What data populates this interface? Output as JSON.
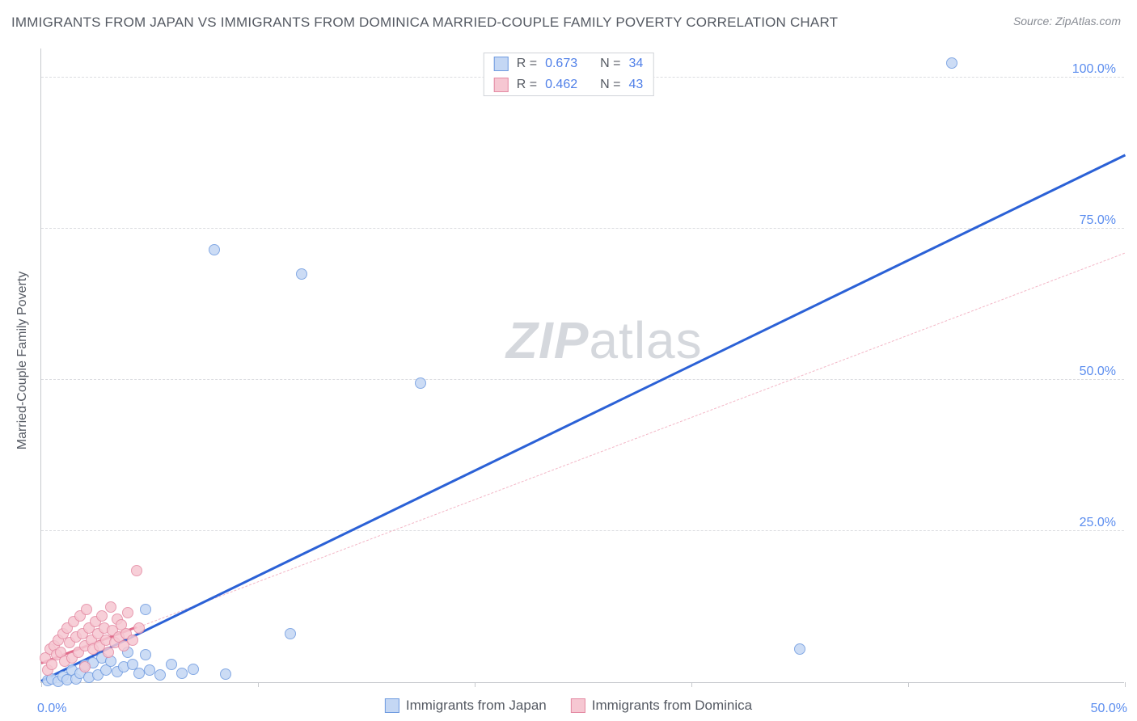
{
  "title": "IMMIGRANTS FROM JAPAN VS IMMIGRANTS FROM DOMINICA MARRIED-COUPLE FAMILY POVERTY CORRELATION CHART",
  "source": "Source: ZipAtlas.com",
  "watermark_zip": "ZIP",
  "watermark_atlas": "atlas",
  "ylabel": "Married-Couple Family Poverty",
  "chart": {
    "type": "scatter",
    "background_color": "#ffffff",
    "grid_color": "#dcdde1",
    "axis_color": "#c7c9cd",
    "tick_label_color": "#5b8def",
    "text_color": "#555a63",
    "xlim": [
      0,
      50
    ],
    "ylim": [
      0,
      105
    ],
    "yticks": [
      25,
      50,
      75,
      100
    ],
    "ytick_labels": [
      "25.0%",
      "50.0%",
      "75.0%",
      "100.0%"
    ],
    "xticks": [
      0,
      10,
      20,
      30,
      40,
      50
    ],
    "xtick_label_min": "0.0%",
    "xtick_label_max": "50.0%",
    "series": [
      {
        "name": "Immigrants from Japan",
        "fill": "#c4d7f4",
        "stroke": "#6f9be0",
        "marker_radius": 7,
        "points": [
          [
            0.3,
            0.3
          ],
          [
            0.5,
            0.5
          ],
          [
            0.8,
            0.2
          ],
          [
            1.0,
            1.0
          ],
          [
            1.2,
            0.4
          ],
          [
            1.4,
            2.0
          ],
          [
            1.6,
            0.6
          ],
          [
            1.8,
            1.5
          ],
          [
            2.0,
            2.8
          ],
          [
            2.2,
            0.8
          ],
          [
            2.4,
            3.2
          ],
          [
            2.6,
            1.2
          ],
          [
            2.8,
            4.0
          ],
          [
            3.0,
            2.0
          ],
          [
            3.2,
            3.5
          ],
          [
            3.5,
            1.8
          ],
          [
            3.8,
            2.5
          ],
          [
            4.0,
            5.0
          ],
          [
            4.2,
            3.0
          ],
          [
            4.5,
            1.5
          ],
          [
            4.8,
            4.5
          ],
          [
            5.0,
            2.0
          ],
          [
            5.5,
            1.2
          ],
          [
            6.0,
            3.0
          ],
          [
            6.5,
            1.5
          ],
          [
            7.0,
            2.2
          ],
          [
            8.5,
            1.3
          ],
          [
            4.8,
            12.0
          ],
          [
            8.0,
            71.5
          ],
          [
            12.0,
            67.5
          ],
          [
            11.5,
            8.0
          ],
          [
            17.5,
            49.5
          ],
          [
            35.0,
            5.5
          ],
          [
            42.0,
            102.5
          ]
        ],
        "regression": {
          "color": "#2b61d6",
          "width": 3,
          "dash": "solid",
          "x_extent": 50,
          "start": [
            0,
            0
          ],
          "end": [
            50,
            87
          ]
        },
        "stats": {
          "R": "0.673",
          "N": "34"
        }
      },
      {
        "name": "Immigrants from Dominica",
        "fill": "#f6c7d2",
        "stroke": "#e48aa3",
        "marker_radius": 7,
        "points": [
          [
            0.2,
            4.0
          ],
          [
            0.3,
            2.0
          ],
          [
            0.4,
            5.5
          ],
          [
            0.5,
            3.0
          ],
          [
            0.6,
            6.0
          ],
          [
            0.7,
            4.5
          ],
          [
            0.8,
            7.0
          ],
          [
            0.9,
            5.0
          ],
          [
            1.0,
            8.0
          ],
          [
            1.1,
            3.5
          ],
          [
            1.2,
            9.0
          ],
          [
            1.3,
            6.5
          ],
          [
            1.4,
            4.0
          ],
          [
            1.5,
            10.0
          ],
          [
            1.6,
            7.5
          ],
          [
            1.7,
            5.0
          ],
          [
            1.8,
            11.0
          ],
          [
            1.9,
            8.0
          ],
          [
            2.0,
            6.0
          ],
          [
            2.1,
            12.0
          ],
          [
            2.2,
            9.0
          ],
          [
            2.3,
            7.0
          ],
          [
            2.4,
            5.5
          ],
          [
            2.5,
            10.0
          ],
          [
            2.6,
            8.0
          ],
          [
            2.7,
            6.0
          ],
          [
            2.8,
            11.0
          ],
          [
            2.9,
            9.0
          ],
          [
            3.0,
            7.0
          ],
          [
            3.1,
            5.0
          ],
          [
            3.2,
            12.5
          ],
          [
            3.3,
            8.5
          ],
          [
            3.4,
            6.5
          ],
          [
            3.5,
            10.5
          ],
          [
            3.6,
            7.5
          ],
          [
            3.7,
            9.5
          ],
          [
            3.8,
            6.0
          ],
          [
            3.9,
            8.0
          ],
          [
            4.0,
            11.5
          ],
          [
            4.2,
            7.0
          ],
          [
            4.5,
            9.0
          ],
          [
            2.0,
            2.5
          ],
          [
            4.4,
            18.5
          ]
        ],
        "regression": {
          "color_solid": "#e26a8a",
          "color_dash": "#f3b6c6",
          "width_solid": 3,
          "width_dash": 1.5,
          "solid_extent": 4.4,
          "start": [
            0,
            3
          ],
          "end": [
            50,
            71
          ]
        },
        "stats": {
          "R": "0.462",
          "N": "43"
        }
      }
    ],
    "legend_labels": {
      "R_prefix": "R =",
      "N_prefix": "N ="
    }
  }
}
